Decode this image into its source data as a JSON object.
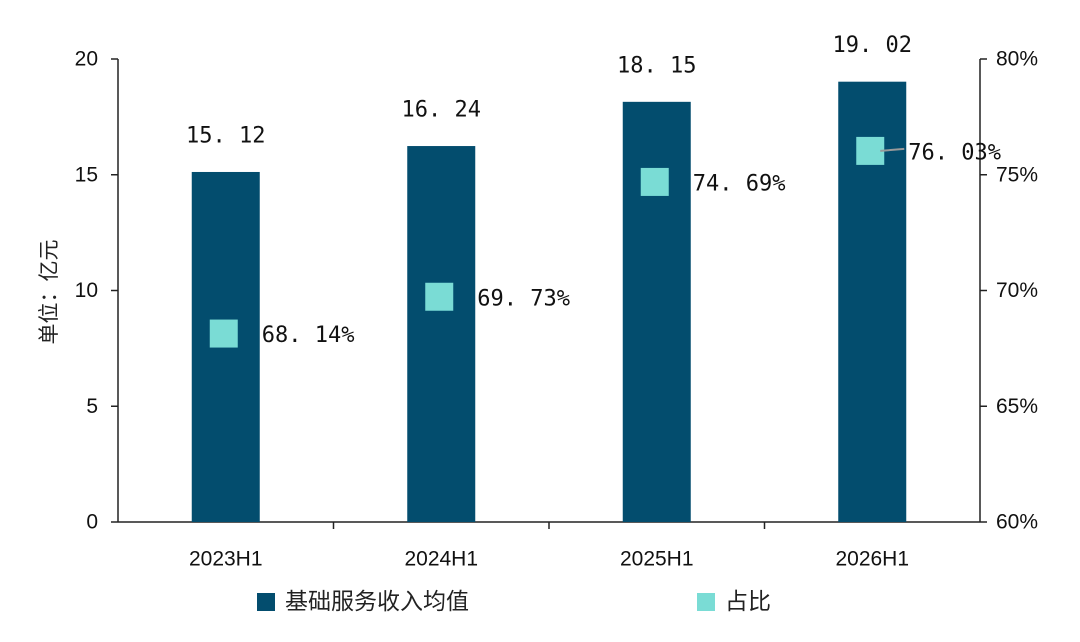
{
  "chart_data": {
    "type": "bar",
    "categories": [
      "2023H1",
      "2024H1",
      "2025H1",
      "2026H1"
    ],
    "series": [
      {
        "name": "基础服务收入均值",
        "kind": "bar",
        "axis": "left",
        "color": "#034D6E",
        "values": [
          15.12,
          16.24,
          18.15,
          19.02
        ],
        "labels": [
          "15. 12",
          "16. 24",
          "18. 15",
          "19. 02"
        ]
      },
      {
        "name": "占比",
        "kind": "marker",
        "axis": "right",
        "color": "#7ADCD5",
        "values": [
          68.14,
          69.73,
          74.69,
          76.03
        ],
        "labels": [
          "68. 14%",
          "69. 73%",
          "74. 69%",
          "76. 03%"
        ]
      }
    ],
    "ylabel": "单位：亿元",
    "ylim": [
      0,
      20
    ],
    "yticks": [
      "0",
      "5",
      "10",
      "15",
      "20"
    ],
    "y2lim": [
      60,
      80
    ],
    "y2ticks": [
      "60%",
      "65%",
      "70%",
      "75%",
      "80%"
    ],
    "grid": false,
    "legend_position": "bottom"
  }
}
